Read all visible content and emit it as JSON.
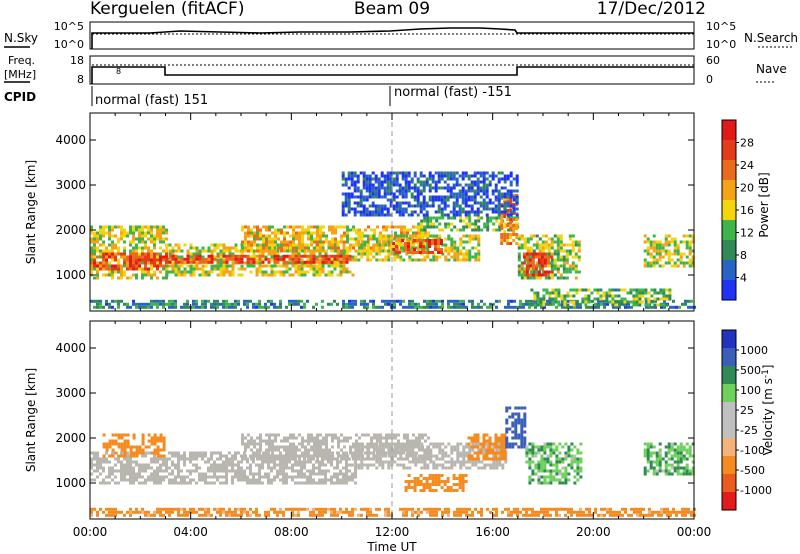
{
  "header": {
    "station": "Kerguelen (fitACF)",
    "beam": "Beam 09",
    "date": "17/Dec/2012"
  },
  "params": {
    "nsky_label": "N.Sky",
    "nsky_ticks": [
      "10^5",
      "10^0"
    ],
    "nsearch_label": "N.Search",
    "nsearch_ticks": [
      "10^5",
      "10^0"
    ],
    "freq_label_1": "Freq.",
    "freq_label_2": "[MHz]",
    "freq_ticks": [
      "18",
      "8"
    ],
    "nave_label": "Nave",
    "nave_ticks": [
      "60",
      "0"
    ],
    "cpid_label": "CPID",
    "cpid_segments": [
      "normal (fast) 151",
      "normal (fast) -151"
    ]
  },
  "colors": {
    "power_scale": [
      "#1e33f5",
      "#2a63c8",
      "#2f8a55",
      "#3fb44a",
      "#f4d40c",
      "#f5a316",
      "#ea6b1d",
      "#e43b1a",
      "#e01b17"
    ],
    "velocity_scale": [
      "#e31a1c",
      "#eb5a1e",
      "#f58a1f",
      "#f5b27a",
      "#c0c0c0",
      "#c0c0c0",
      "#6fd05a",
      "#2f8a55",
      "#3a5fb8",
      "#2233c0"
    ],
    "ground_scatter": "#b9b6b0"
  },
  "chart_data": [
    {
      "type": "heatmap",
      "title": "Power",
      "xlabel": "Time UT",
      "ylabel": "Slant Range [km]",
      "xlim": [
        "00:00",
        "24:00"
      ],
      "ylim": [
        200,
        4600
      ],
      "x_ticks": [
        "00:00",
        "04:00",
        "08:00",
        "12:00",
        "16:00",
        "20:00",
        "00:00"
      ],
      "y_ticks": [
        1000,
        2000,
        3000,
        4000
      ],
      "colorbar_label": "Power [dB]",
      "colorbar_ticks": [
        4,
        8,
        12,
        16,
        20,
        24,
        28
      ],
      "regions": [
        {
          "t0": 0.0,
          "t1": 3.0,
          "r0": 900,
          "r1": 2100,
          "value": 16
        },
        {
          "t0": 0.0,
          "t1": 3.0,
          "r0": 1100,
          "r1": 1500,
          "value": 26
        },
        {
          "t0": 3.0,
          "t1": 10.5,
          "r0": 1000,
          "r1": 1700,
          "value": 16
        },
        {
          "t0": 3.0,
          "t1": 10.5,
          "r0": 1250,
          "r1": 1450,
          "value": 26
        },
        {
          "t0": 6.0,
          "t1": 13.5,
          "r0": 1500,
          "r1": 2100,
          "value": 18
        },
        {
          "t0": 10.5,
          "t1": 15.5,
          "r0": 1300,
          "r1": 1900,
          "value": 16
        },
        {
          "t0": 12.0,
          "t1": 14.0,
          "r0": 1500,
          "r1": 1800,
          "value": 26
        },
        {
          "t0": 13.0,
          "t1": 17.0,
          "r0": 2000,
          "r1": 2300,
          "value": 12
        },
        {
          "t0": 16.3,
          "t1": 17.0,
          "r0": 1700,
          "r1": 2800,
          "value": 22
        },
        {
          "t0": 17.0,
          "t1": 19.5,
          "r0": 900,
          "r1": 1900,
          "value": 14
        },
        {
          "t0": 17.2,
          "t1": 18.3,
          "r0": 1000,
          "r1": 1500,
          "value": 27
        },
        {
          "t0": 22.0,
          "t1": 24.0,
          "r0": 1200,
          "r1": 1900,
          "value": 16
        },
        {
          "t0": 0.0,
          "t1": 24.0,
          "r0": 250,
          "r1": 450,
          "value": 8
        },
        {
          "t0": 17.5,
          "t1": 23.0,
          "r0": 300,
          "r1": 700,
          "value": 12
        },
        {
          "t0": 10.0,
          "t1": 17.0,
          "r0": 2300,
          "r1": 3300,
          "value": 4
        }
      ]
    },
    {
      "type": "heatmap",
      "title": "Velocity",
      "xlabel": "Time UT",
      "ylabel": "Slant Range [km]",
      "xlim": [
        "00:00",
        "24:00"
      ],
      "ylim": [
        200,
        4600
      ],
      "x_ticks": [
        "00:00",
        "04:00",
        "08:00",
        "12:00",
        "16:00",
        "20:00",
        "00:00"
      ],
      "y_ticks": [
        1000,
        2000,
        3000,
        4000
      ],
      "colorbar_label": "Velocity [m s^-1]",
      "colorbar_ticks": [
        "1000",
        "500",
        "100",
        "25",
        "-25",
        "-100",
        "-500",
        "-1000"
      ],
      "regions": [
        {
          "t0": 0.0,
          "t1": 10.5,
          "r0": 1000,
          "r1": 1700,
          "value": 0
        },
        {
          "t0": 6.0,
          "t1": 13.5,
          "r0": 1500,
          "r1": 2100,
          "value": 0
        },
        {
          "t0": 10.5,
          "t1": 16.5,
          "r0": 1300,
          "r1": 1900,
          "value": 0
        },
        {
          "t0": 0.0,
          "t1": 24.0,
          "r0": 250,
          "r1": 450,
          "value": -150
        },
        {
          "t0": 12.5,
          "t1": 15.0,
          "r0": 800,
          "r1": 1200,
          "value": -300
        },
        {
          "t0": 15.0,
          "t1": 16.5,
          "r0": 1500,
          "r1": 2100,
          "value": -300
        },
        {
          "t0": 16.5,
          "t1": 17.3,
          "r0": 1800,
          "r1": 2700,
          "value": 700
        },
        {
          "t0": 17.3,
          "t1": 19.5,
          "r0": 1000,
          "r1": 1900,
          "value": 80
        },
        {
          "t0": 22.0,
          "t1": 24.0,
          "r0": 1200,
          "r1": 1900,
          "value": 80
        },
        {
          "t0": 0.5,
          "t1": 3.0,
          "r0": 1600,
          "r1": 2100,
          "value": -300
        }
      ]
    }
  ]
}
